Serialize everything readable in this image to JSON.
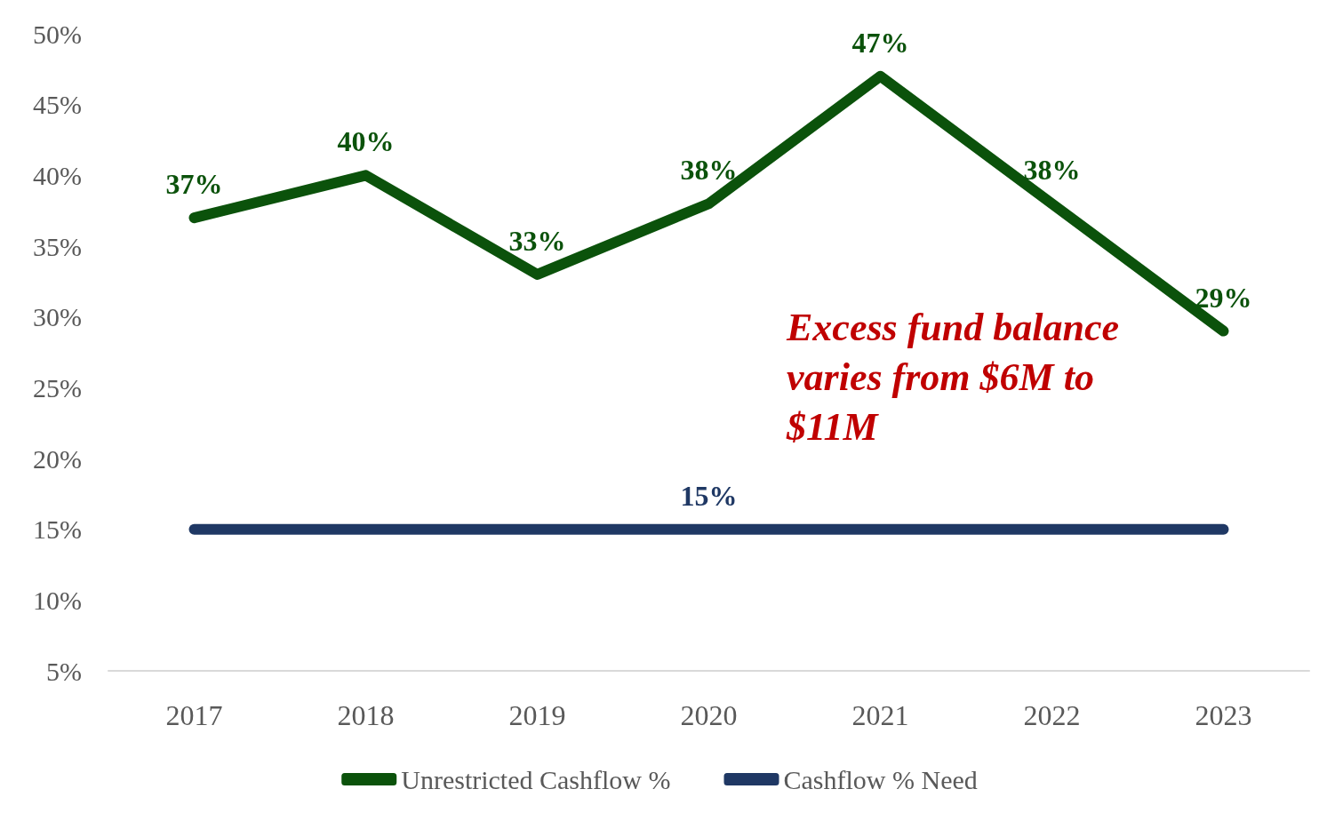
{
  "chart_data": {
    "type": "line",
    "categories": [
      "2017",
      "2018",
      "2019",
      "2020",
      "2021",
      "2022",
      "2023"
    ],
    "series": [
      {
        "name": "Unrestricted Cashflow %",
        "color": "#0b520b",
        "values": [
          37,
          40,
          33,
          38,
          47,
          38,
          29
        ],
        "value_labels": [
          "37%",
          "40%",
          "33%",
          "38%",
          "47%",
          "38%",
          "29%"
        ]
      },
      {
        "name": "Cashflow % Need",
        "color": "#1f3864",
        "values": [
          15,
          15,
          15,
          15,
          15,
          15,
          15
        ],
        "value_labels": [
          null,
          null,
          null,
          "15%",
          null,
          null,
          null
        ]
      }
    ],
    "ylim": [
      5,
      50
    ],
    "yticks": [
      {
        "value": 5,
        "label": "5%"
      },
      {
        "value": 10,
        "label": "10%"
      },
      {
        "value": 15,
        "label": "15%"
      },
      {
        "value": 20,
        "label": "20%"
      },
      {
        "value": 25,
        "label": "25%"
      },
      {
        "value": 30,
        "label": "30%"
      },
      {
        "value": 35,
        "label": "35%"
      },
      {
        "value": 40,
        "label": "40%"
      },
      {
        "value": 45,
        "label": "45%"
      },
      {
        "value": 50,
        "label": "50%"
      }
    ],
    "grid": false,
    "legend": "bottom",
    "marker": "none",
    "line_style": "solid",
    "annotations": [
      "Excess fund balance varies from $6M to $11M"
    ]
  }
}
